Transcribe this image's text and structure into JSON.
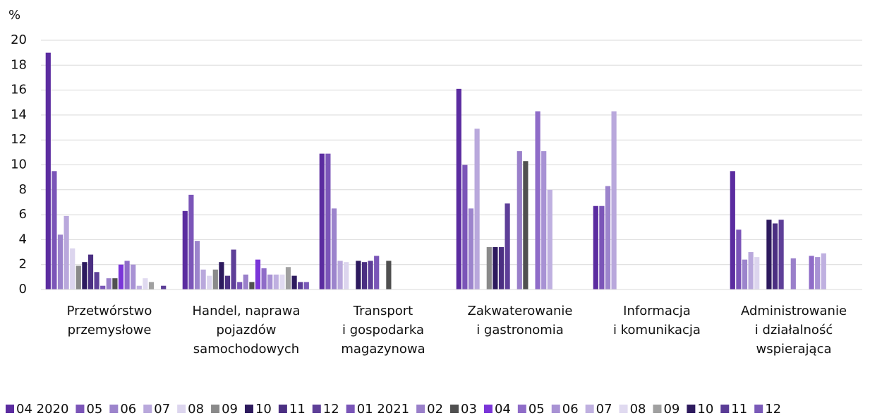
{
  "chart_data": {
    "type": "bar",
    "y_label": "%",
    "categories": [
      "Przetwórstwo\nprzemysłowe",
      "Handel, naprawa\npojazdów\nsamochodowych",
      "Transport\ni gospodarka\nmagazynowa",
      "Zakwaterowanie\ni gastronomia",
      "Informacja\ni komunikacja",
      "Administrowanie\ni działalność\nwspierająca"
    ],
    "ylim": [
      0,
      20
    ],
    "yticks": [
      0,
      2,
      4,
      6,
      8,
      10,
      12,
      14,
      16,
      18,
      20
    ],
    "grid": true,
    "legend": "bottom",
    "series": [
      {
        "name": "04 2020",
        "color": "#5b2ca0",
        "values": [
          19,
          6.3,
          10.9,
          16.1,
          6.7,
          9.5
        ]
      },
      {
        "name": "05",
        "color": "#7b55b8",
        "values": [
          9.5,
          7.6,
          10.9,
          10.0,
          6.7,
          4.8
        ]
      },
      {
        "name": "06",
        "color": "#9c84cc",
        "values": [
          4.4,
          3.9,
          6.5,
          6.5,
          8.3,
          2.4
        ]
      },
      {
        "name": "07",
        "color": "#b9a8dc",
        "values": [
          5.9,
          1.6,
          2.3,
          12.9,
          14.3,
          3.0
        ]
      },
      {
        "name": "08",
        "color": "#dcd5ee",
        "values": [
          3.3,
          1.1,
          2.2,
          0,
          0,
          2.6
        ]
      },
      {
        "name": "09",
        "color": "#8a8a8a",
        "values": [
          1.9,
          1.6,
          0,
          3.4,
          0,
          0
        ]
      },
      {
        "name": "10",
        "color": "#2d1a5e",
        "values": [
          2.2,
          2.2,
          2.3,
          3.4,
          0,
          5.6
        ]
      },
      {
        "name": "11",
        "color": "#4b2f82",
        "values": [
          2.8,
          1.1,
          2.2,
          3.4,
          0,
          5.3
        ]
      },
      {
        "name": "12",
        "color": "#5e3f98",
        "values": [
          1.4,
          3.2,
          2.3,
          6.9,
          0,
          5.6
        ]
      },
      {
        "name": "01 2021",
        "color": "#7a56b8",
        "values": [
          0.3,
          0.6,
          2.7,
          0,
          0,
          0
        ]
      },
      {
        "name": "02",
        "color": "#9a80ca",
        "values": [
          0.9,
          1.2,
          0,
          11.1,
          0,
          2.5
        ]
      },
      {
        "name": "03",
        "color": "#505050",
        "values": [
          0.9,
          0.6,
          2.3,
          10.3,
          0,
          0
        ]
      },
      {
        "name": "04",
        "color": "#7a35d8",
        "values": [
          2.0,
          2.4,
          0,
          0,
          0,
          0
        ]
      },
      {
        "name": "05",
        "color": "#8f6cc8",
        "values": [
          2.3,
          1.7,
          0,
          14.3,
          0,
          2.7
        ]
      },
      {
        "name": "06",
        "color": "#a892d4",
        "values": [
          2.0,
          1.2,
          0,
          11.1,
          0,
          2.6
        ]
      },
      {
        "name": "07",
        "color": "#bfb0e0",
        "values": [
          0.3,
          1.2,
          0,
          8.0,
          0,
          2.9
        ]
      },
      {
        "name": "08",
        "color": "#e0daf0",
        "values": [
          0.9,
          1.2,
          0,
          0,
          0,
          0
        ]
      },
      {
        "name": "09",
        "color": "#a0a0a0",
        "values": [
          0.6,
          1.8,
          0,
          0,
          0,
          0
        ]
      },
      {
        "name": "10",
        "color": "#2d1a5e",
        "values": [
          0,
          1.1,
          0,
          0,
          0,
          0
        ]
      },
      {
        "name": "11",
        "color": "#5a3c96",
        "values": [
          0.3,
          0.6,
          0,
          0,
          0,
          0
        ]
      },
      {
        "name": "12",
        "color": "#7a5ab8",
        "values": [
          0,
          0.6,
          0,
          0,
          0,
          0
        ]
      }
    ]
  }
}
